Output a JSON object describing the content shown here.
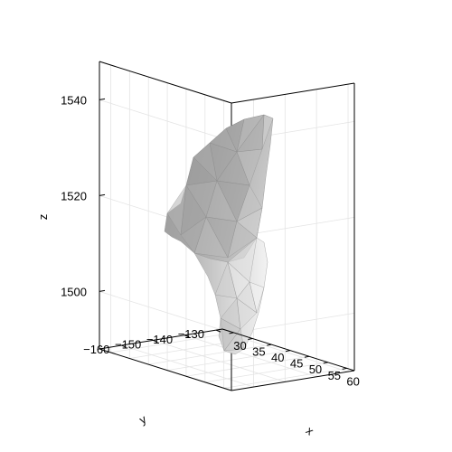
{
  "chart_data": {
    "type": "surface3d",
    "title": "",
    "xlabel": "x",
    "ylabel": "y",
    "zlabel": "z",
    "xlim": [
      27,
      62
    ],
    "ylim": [
      -128,
      -167
    ],
    "zlim": [
      1488,
      1548
    ],
    "x_ticks": [
      30,
      35,
      40,
      45,
      50,
      55,
      60
    ],
    "x_tick_labels": [
      "30",
      "35",
      "40",
      "45",
      "50",
      "55",
      "60"
    ],
    "y_ticks": [
      -130,
      -140,
      -150,
      -160
    ],
    "y_tick_labels": [
      "−130",
      "−140",
      "−150",
      "−160"
    ],
    "z_ticks": [
      1500,
      1520,
      1540
    ],
    "z_tick_labels": [
      "1500",
      "1520",
      "1540"
    ],
    "grid": true,
    "legend": "none",
    "surface_color": "#a0a0a0",
    "grid_color": "#e4e4e4",
    "frame_color": "#000000",
    "surface_z_range": [
      1490,
      1540
    ]
  }
}
